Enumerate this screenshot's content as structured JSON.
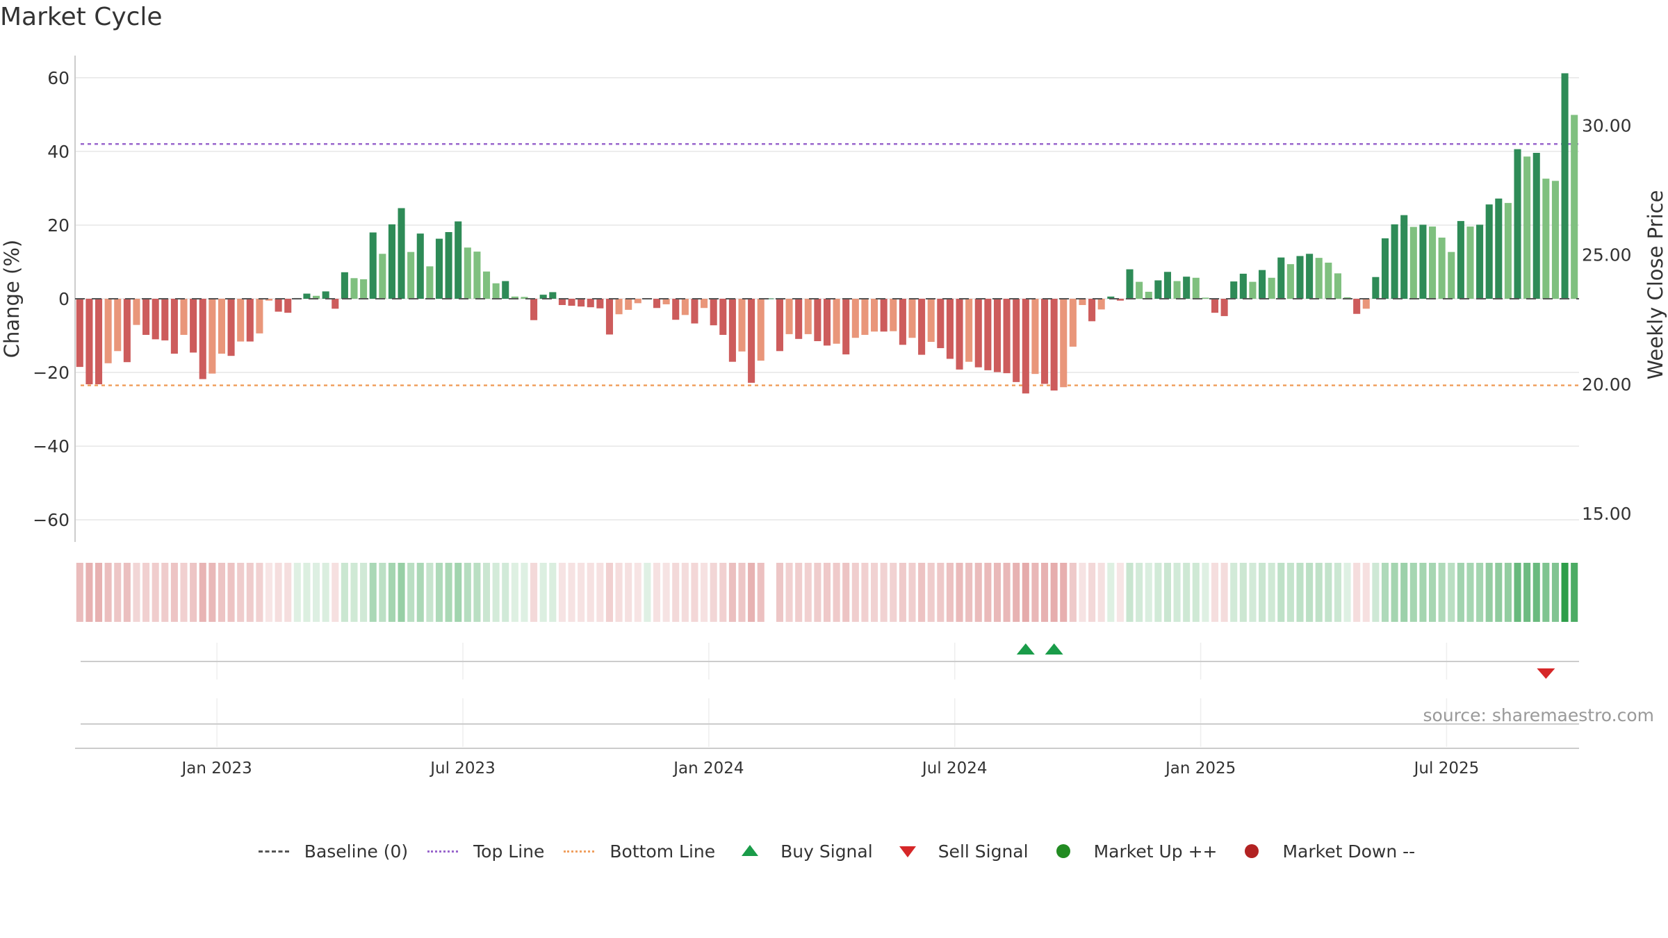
{
  "title": "Market Cycle",
  "source": "source: sharemaestro.com",
  "legend": {
    "baseline": "Baseline (0)",
    "top": "Top Line",
    "bottom": "Bottom Line",
    "buy": "Buy Signal",
    "sell": "Sell Signal",
    "up": "Market Up ++",
    "down": "Market Down --"
  },
  "colors": {
    "strong_green": "#2e8b57",
    "light_green": "#7fc07f",
    "strong_red": "#cd5c5c",
    "light_red": "#e9967a",
    "top_line": "#9966cc",
    "bottom_line": "#f0a060",
    "buy": "#1a9c49",
    "sell": "#d62728",
    "market_up": "#228b22",
    "market_down": "#b22222"
  },
  "chart_data": {
    "type": "bar",
    "title": "Market Cycle",
    "ylabel": "Change (%)",
    "y2label": "Weekly Close Price",
    "ylim": [
      -66,
      66
    ],
    "y2lim": [
      13.9,
      32.7
    ],
    "yticks": [
      -60,
      -40,
      -20,
      0,
      20,
      40,
      60
    ],
    "y2ticks": [
      "15.00",
      "20.00",
      "25.00",
      "30.00"
    ],
    "xticks": [
      "Jan 2023",
      "Jul 2023",
      "Jan 2024",
      "Jul 2024",
      "Jan 2025",
      "Jul 2025"
    ],
    "xtick_positions": [
      15,
      41,
      67,
      93,
      119,
      145
    ],
    "top_line": 42,
    "bottom_line": -23.5,
    "baseline": 0,
    "grid": true,
    "legend_position": "bottom",
    "values": [
      -18.5,
      -23.2,
      -23.2,
      -17.5,
      -14.2,
      -17.2,
      -7.1,
      -9.8,
      -11,
      -11.3,
      -14.9,
      -9.8,
      -14.6,
      -21.8,
      -20.3,
      -14.9,
      -15.5,
      -11.6,
      -11.6,
      -9.4,
      -0.5,
      -3.5,
      -3.8,
      0.2,
      1.4,
      0.8,
      2,
      -2.7,
      7.2,
      5.6,
      5.3,
      18,
      12.2,
      20.2,
      24.6,
      12.7,
      17.7,
      8.8,
      16.3,
      18.1,
      21,
      13.9,
      12.8,
      7.4,
      4.2,
      4.8,
      0.6,
      0.5,
      -5.8,
      1.1,
      1.8,
      -1.7,
      -1.9,
      -2.1,
      -2.3,
      -2.6,
      -9.7,
      -4.2,
      -3,
      -1.2,
      0.1,
      -2.5,
      -1.5,
      -5.7,
      -4.4,
      -6.7,
      -2.5,
      -7.2,
      -9.8,
      -17.1,
      -14.3,
      -22.8,
      -16.8,
      0.1,
      -14.2,
      -9.6,
      -10.9,
      -9.6,
      -11.5,
      -12.7,
      -12.2,
      -15.1,
      -10.6,
      -9.8,
      -8.9,
      -8.9,
      -8.8,
      -12.5,
      -10.6,
      -15.2,
      -11.7,
      -13.4,
      -16.3,
      -19.2,
      -17.1,
      -18.6,
      -19.4,
      -19.9,
      -20.2,
      -22.6,
      -25.7,
      -20.4,
      -23.1,
      -24.9,
      -24,
      -13,
      -1.7,
      -6.1,
      -2.9,
      0.6,
      -0.5,
      8,
      4.6,
      1.9,
      5,
      7.3,
      4.8,
      6,
      5.7,
      0.3,
      -3.8,
      -4.7,
      4.7,
      6.8,
      4.6,
      7.8,
      5.7,
      11.2,
      9.4,
      11.6,
      12.2,
      11.1,
      9.8,
      6.9,
      0.4,
      -4.1,
      -2.7,
      5.9,
      16.4,
      20.2,
      22.7,
      19.5,
      20.1,
      19.6,
      16.6,
      12.7,
      21.1,
      19.6,
      20.1,
      25.6,
      27.2,
      26,
      40.6,
      38.6,
      39.6,
      32.6,
      32,
      61.2,
      49.9
    ],
    "missing_strip_index": 73,
    "buy_signals": [
      100,
      103
    ],
    "sell_signals": [
      155
    ]
  }
}
